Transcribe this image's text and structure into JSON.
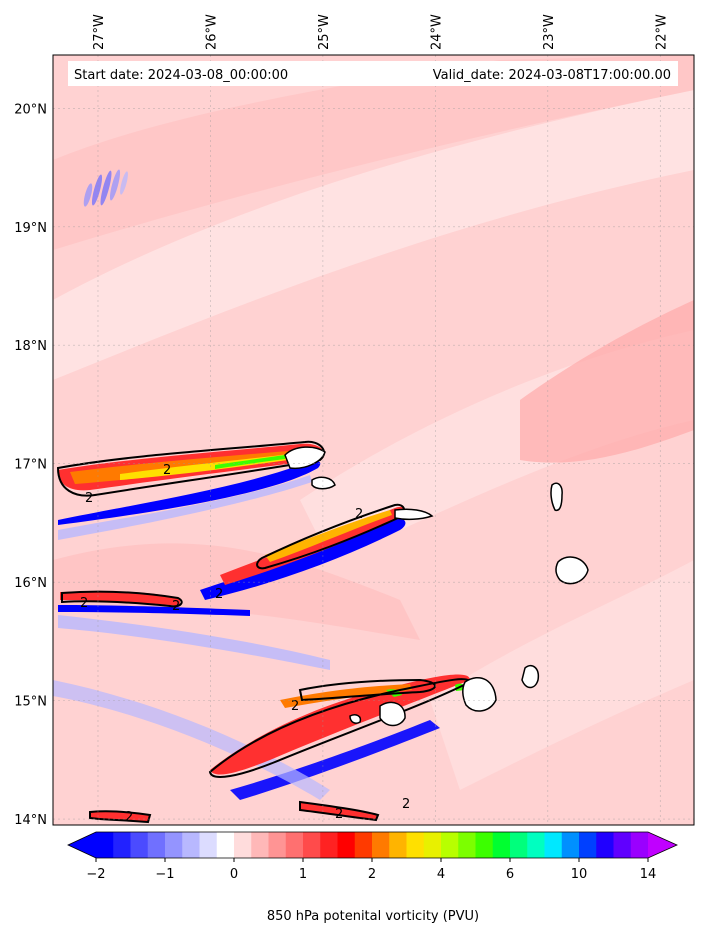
{
  "header": {
    "start_date": "Start date: 2024-03-08_00:00:00",
    "valid_date": "Valid_date: 2024-03-08T17:00:00.00"
  },
  "map": {
    "lon_range": [
      -27.4,
      -21.7
    ],
    "lat_range": [
      13.95,
      20.45
    ],
    "lon_ticks": [
      {
        "value": -27,
        "label": "27°W"
      },
      {
        "value": -26,
        "label": "26°W"
      },
      {
        "value": -25,
        "label": "25°W"
      },
      {
        "value": -24,
        "label": "24°W"
      },
      {
        "value": -23,
        "label": "23°W"
      },
      {
        "value": -22,
        "label": "22°W"
      }
    ],
    "lat_ticks": [
      {
        "value": 20,
        "label": "20°N"
      },
      {
        "value": 19,
        "label": "19°N"
      },
      {
        "value": 18,
        "label": "18°N"
      },
      {
        "value": 17,
        "label": "17°N"
      },
      {
        "value": 16,
        "label": "16°N"
      },
      {
        "value": 15,
        "label": "15°N"
      },
      {
        "value": 14,
        "label": "14°N"
      }
    ],
    "gridlines": true,
    "contour_label": "2"
  },
  "colorbar": {
    "title": "850 hPa potenital vorticity (PVU)",
    "colors": [
      "#0000ff",
      "#2222ff",
      "#4b4bff",
      "#7070ff",
      "#9494ff",
      "#b8b8ff",
      "#dcdcff",
      "#ffffff",
      "#ffdcdc",
      "#ffb8b8",
      "#ff9494",
      "#ff7070",
      "#ff4b4b",
      "#ff2222",
      "#ff0000",
      "#ff3a00",
      "#ff7a00",
      "#ffb400",
      "#ffe000",
      "#e8f000",
      "#b8ff00",
      "#7cff00",
      "#3cff00",
      "#00ff30",
      "#00ff7c",
      "#00ffc0",
      "#00e8ff",
      "#0090ff",
      "#0040ff",
      "#2000ff",
      "#6000ff",
      "#9a00ff"
    ],
    "left_extend_color": "#0000ff",
    "right_extend_color": "#c000ff",
    "ticks": [
      {
        "value": -2,
        "label": "−2",
        "index": 0
      },
      {
        "value": -1,
        "label": "−1",
        "index": 4
      },
      {
        "value": 0,
        "label": "0",
        "index": 8
      },
      {
        "value": 1,
        "label": "1",
        "index": 12
      },
      {
        "value": 2,
        "label": "2",
        "index": 16
      },
      {
        "value": 4,
        "label": "4",
        "index": 20
      },
      {
        "value": 6,
        "label": "6",
        "index": 24
      },
      {
        "value": 10,
        "label": "10",
        "index": 28
      },
      {
        "value": 14,
        "label": "14",
        "index": 32
      }
    ]
  }
}
